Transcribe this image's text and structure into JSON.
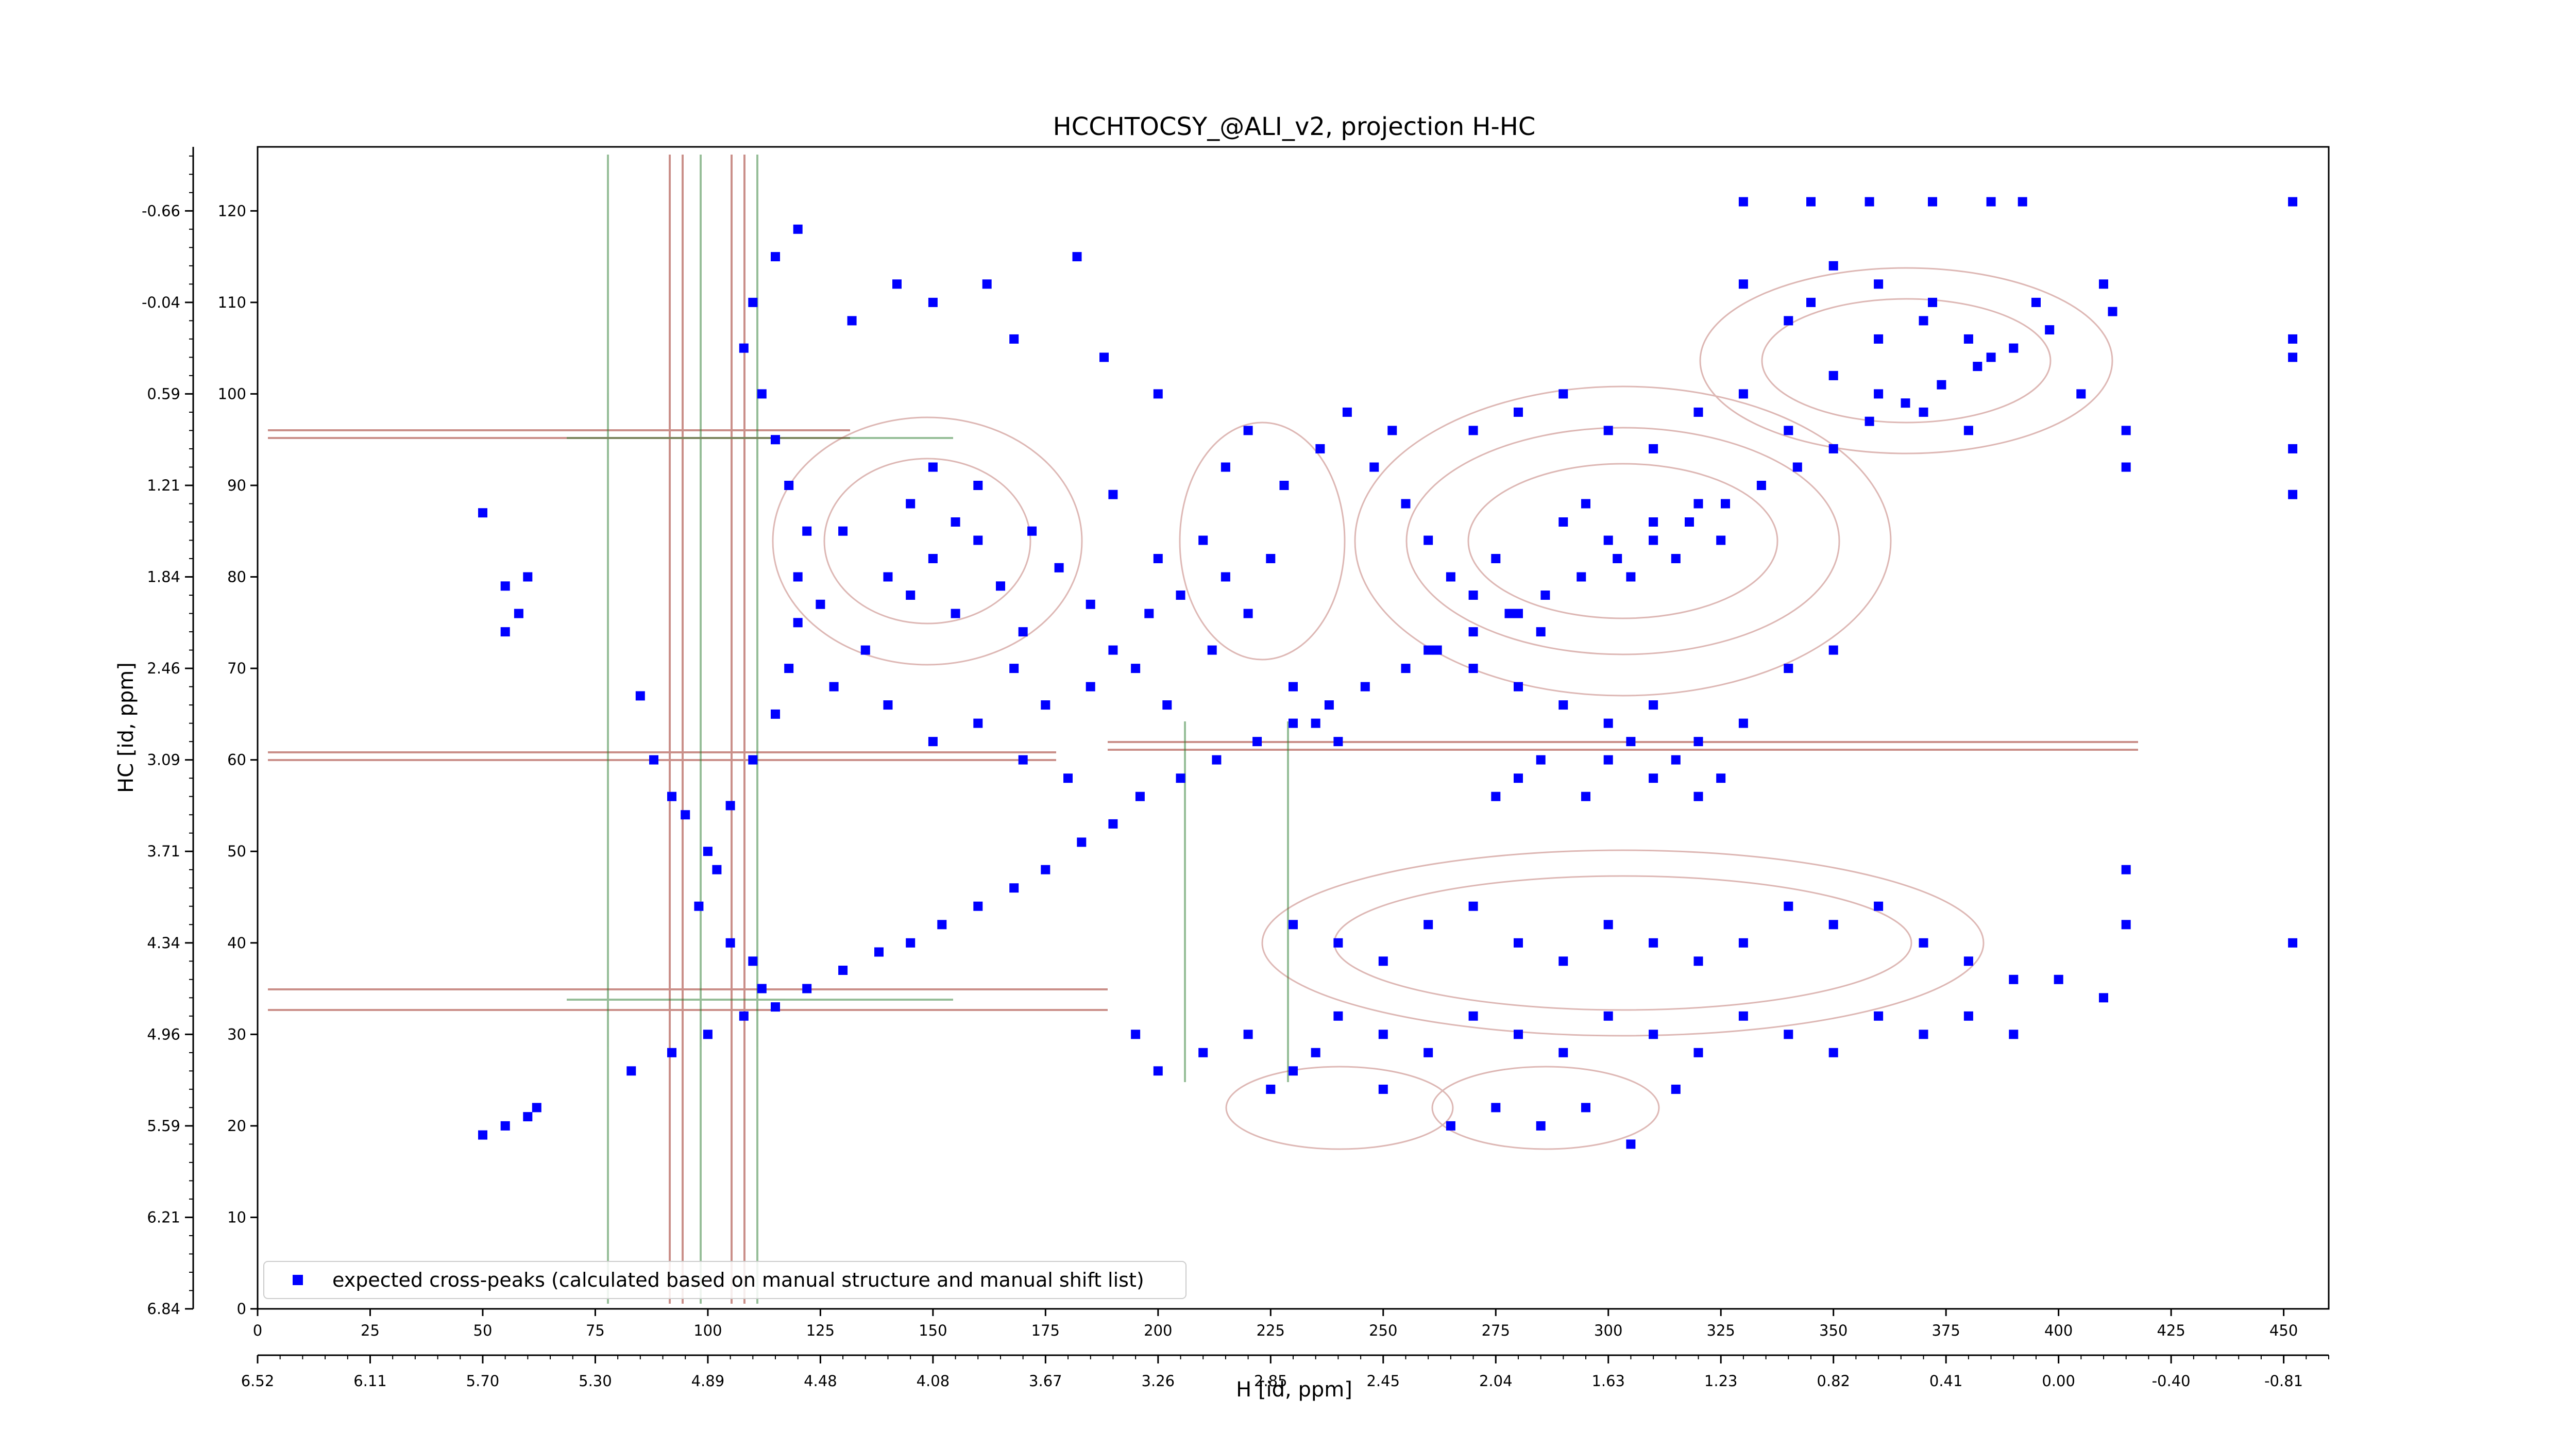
{
  "chart_data": {
    "type": "scatter",
    "title": "HCCHTOCSY_@ALI_v2, projection H-HC",
    "xlabel": "H [id, ppm]",
    "ylabel": "HC [id, ppm]",
    "x_index_ticks": [
      "0",
      "25",
      "50",
      "75",
      "100",
      "125",
      "150",
      "175",
      "200",
      "225",
      "250",
      "275",
      "300",
      "325",
      "350",
      "375",
      "400",
      "425",
      "450"
    ],
    "x_index_range": [
      0,
      460
    ],
    "x_ppm_ticks": [
      "6.52",
      "6.11",
      "5.70",
      "5.30",
      "4.89",
      "4.48",
      "4.08",
      "3.67",
      "3.26",
      "2.85",
      "2.45",
      "2.04",
      "1.63",
      "1.23",
      "0.82",
      "0.41",
      "0.00",
      "-0.40",
      "-0.81"
    ],
    "y_index_ticks": [
      "0",
      "10",
      "20",
      "30",
      "40",
      "50",
      "60",
      "70",
      "80",
      "90",
      "100",
      "110",
      "120"
    ],
    "y_index_range": [
      0,
      127
    ],
    "y_ppm_ticks": [
      "6.84",
      "6.21",
      "5.59",
      "4.96",
      "4.34",
      "3.71",
      "3.09",
      "2.46",
      "1.84",
      "1.21",
      "0.59",
      "-0.04",
      "-0.66"
    ],
    "legend": {
      "label": "expected cross-peaks (calculated based on manual structure and manual shift list)",
      "position": "lower-left"
    },
    "colors": {
      "marker": "#0000ff",
      "contour_positive": "#a0352a",
      "contour_negative": "#2e7d32"
    },
    "series": [
      {
        "label": "expected cross-peaks (calculated based on manual structure and manual shift list)",
        "points": [
          [
            50,
            19
          ],
          [
            55,
            20
          ],
          [
            60,
            21
          ],
          [
            62,
            22
          ],
          [
            83,
            26
          ],
          [
            92,
            28
          ],
          [
            100,
            30
          ],
          [
            108,
            32
          ],
          [
            115,
            33
          ],
          [
            122,
            35
          ],
          [
            130,
            37
          ],
          [
            138,
            39
          ],
          [
            145,
            40
          ],
          [
            152,
            42
          ],
          [
            160,
            44
          ],
          [
            168,
            46
          ],
          [
            175,
            48
          ],
          [
            183,
            51
          ],
          [
            190,
            53
          ],
          [
            196,
            56
          ],
          [
            205,
            58
          ],
          [
            213,
            60
          ],
          [
            222,
            62
          ],
          [
            230,
            64
          ],
          [
            238,
            66
          ],
          [
            246,
            68
          ],
          [
            255,
            70
          ],
          [
            262,
            72
          ],
          [
            270,
            74
          ],
          [
            278,
            76
          ],
          [
            286,
            78
          ],
          [
            294,
            80
          ],
          [
            302,
            82
          ],
          [
            310,
            84
          ],
          [
            318,
            86
          ],
          [
            326,
            88
          ],
          [
            334,
            90
          ],
          [
            342,
            92
          ],
          [
            350,
            94
          ],
          [
            358,
            97
          ],
          [
            366,
            99
          ],
          [
            374,
            101
          ],
          [
            382,
            103
          ],
          [
            390,
            105
          ],
          [
            398,
            107
          ],
          [
            410,
            112
          ],
          [
            412,
            109
          ],
          [
            452,
            106
          ],
          [
            452,
            104
          ],
          [
            452,
            94
          ],
          [
            452,
            89
          ],
          [
            452,
            40
          ],
          [
            50,
            87
          ],
          [
            55,
            79
          ],
          [
            58,
            76
          ],
          [
            60,
            80
          ],
          [
            55,
            74
          ],
          [
            85,
            67
          ],
          [
            88,
            60
          ],
          [
            92,
            56
          ],
          [
            95,
            54
          ],
          [
            100,
            50
          ],
          [
            102,
            48
          ],
          [
            98,
            44
          ],
          [
            105,
            40
          ],
          [
            110,
            38
          ],
          [
            112,
            35
          ],
          [
            140,
            80
          ],
          [
            145,
            78
          ],
          [
            150,
            82
          ],
          [
            155,
            76
          ],
          [
            160,
            84
          ],
          [
            165,
            79
          ],
          [
            170,
            74
          ],
          [
            135,
            72
          ],
          [
            128,
            68
          ],
          [
            140,
            66
          ],
          [
            150,
            62
          ],
          [
            160,
            64
          ],
          [
            170,
            60
          ],
          [
            180,
            58
          ],
          [
            145,
            88
          ],
          [
            150,
            92
          ],
          [
            155,
            86
          ],
          [
            160,
            90
          ],
          [
            130,
            85
          ],
          [
            125,
            77
          ],
          [
            200,
            82
          ],
          [
            205,
            78
          ],
          [
            210,
            84
          ],
          [
            215,
            80
          ],
          [
            220,
            76
          ],
          [
            225,
            82
          ],
          [
            198,
            76
          ],
          [
            212,
            72
          ],
          [
            230,
            68
          ],
          [
            235,
            64
          ],
          [
            240,
            62
          ],
          [
            195,
            70
          ],
          [
            202,
            66
          ],
          [
            260,
            84
          ],
          [
            265,
            80
          ],
          [
            270,
            78
          ],
          [
            275,
            82
          ],
          [
            280,
            76
          ],
          [
            285,
            74
          ],
          [
            290,
            86
          ],
          [
            295,
            88
          ],
          [
            300,
            84
          ],
          [
            305,
            80
          ],
          [
            310,
            86
          ],
          [
            315,
            82
          ],
          [
            320,
            88
          ],
          [
            325,
            84
          ],
          [
            260,
            72
          ],
          [
            270,
            70
          ],
          [
            280,
            68
          ],
          [
            290,
            66
          ],
          [
            300,
            64
          ],
          [
            310,
            66
          ],
          [
            320,
            62
          ],
          [
            330,
            64
          ],
          [
            340,
            70
          ],
          [
            350,
            72
          ],
          [
            270,
            96
          ],
          [
            280,
            98
          ],
          [
            290,
            100
          ],
          [
            300,
            96
          ],
          [
            310,
            94
          ],
          [
            320,
            98
          ],
          [
            330,
            100
          ],
          [
            340,
            96
          ],
          [
            350,
            102
          ],
          [
            360,
            100
          ],
          [
            370,
            98
          ],
          [
            380,
            96
          ],
          [
            345,
            110
          ],
          [
            360,
            106
          ],
          [
            370,
            108
          ],
          [
            385,
            104
          ],
          [
            395,
            110
          ],
          [
            405,
            100
          ],
          [
            415,
            92
          ],
          [
            415,
            96
          ],
          [
            230,
            42
          ],
          [
            240,
            40
          ],
          [
            250,
            38
          ],
          [
            260,
            42
          ],
          [
            270,
            44
          ],
          [
            280,
            40
          ],
          [
            290,
            38
          ],
          [
            300,
            42
          ],
          [
            310,
            40
          ],
          [
            320,
            38
          ],
          [
            330,
            40
          ],
          [
            340,
            44
          ],
          [
            350,
            42
          ],
          [
            360,
            44
          ],
          [
            370,
            40
          ],
          [
            380,
            38
          ],
          [
            390,
            36
          ],
          [
            400,
            36
          ],
          [
            410,
            34
          ],
          [
            415,
            42
          ],
          [
            415,
            48
          ],
          [
            240,
            32
          ],
          [
            250,
            30
          ],
          [
            260,
            28
          ],
          [
            270,
            32
          ],
          [
            280,
            30
          ],
          [
            290,
            28
          ],
          [
            300,
            32
          ],
          [
            310,
            30
          ],
          [
            320,
            28
          ],
          [
            330,
            32
          ],
          [
            340,
            30
          ],
          [
            350,
            28
          ],
          [
            360,
            32
          ],
          [
            370,
            30
          ],
          [
            380,
            32
          ],
          [
            390,
            30
          ],
          [
            220,
            30
          ],
          [
            210,
            28
          ],
          [
            200,
            26
          ],
          [
            195,
            30
          ],
          [
            265,
            20
          ],
          [
            275,
            22
          ],
          [
            285,
            20
          ],
          [
            295,
            22
          ],
          [
            305,
            18
          ],
          [
            315,
            24
          ],
          [
            250,
            24
          ],
          [
            230,
            26
          ],
          [
            225,
            24
          ],
          [
            235,
            28
          ],
          [
            105,
            55
          ],
          [
            110,
            60
          ],
          [
            115,
            65
          ],
          [
            118,
            70
          ],
          [
            120,
            75
          ],
          [
            120,
            80
          ],
          [
            122,
            85
          ],
          [
            118,
            90
          ],
          [
            115,
            95
          ],
          [
            112,
            100
          ],
          [
            108,
            105
          ],
          [
            110,
            110
          ],
          [
            115,
            115
          ],
          [
            120,
            118
          ],
          [
            300,
            60
          ],
          [
            305,
            62
          ],
          [
            310,
            58
          ],
          [
            295,
            56
          ],
          [
            315,
            60
          ],
          [
            285,
            60
          ],
          [
            280,
            58
          ],
          [
            275,
            56
          ],
          [
            320,
            56
          ],
          [
            325,
            58
          ],
          [
            172,
            85
          ],
          [
            178,
            81
          ],
          [
            185,
            77
          ],
          [
            190,
            89
          ],
          [
            168,
            70
          ],
          [
            175,
            66
          ],
          [
            185,
            68
          ],
          [
            190,
            72
          ],
          [
            182,
            115
          ],
          [
            162,
            112
          ],
          [
            142,
            112
          ],
          [
            132,
            108
          ],
          [
            150,
            110
          ],
          [
            168,
            106
          ],
          [
            188,
            104
          ],
          [
            200,
            100
          ],
          [
            215,
            92
          ],
          [
            220,
            96
          ],
          [
            228,
            90
          ],
          [
            236,
            94
          ],
          [
            242,
            98
          ],
          [
            248,
            92
          ],
          [
            255,
            88
          ],
          [
            252,
            96
          ],
          [
            330,
            121
          ],
          [
            345,
            121
          ],
          [
            358,
            121
          ],
          [
            372,
            121
          ],
          [
            385,
            121
          ],
          [
            392,
            121
          ],
          [
            452,
            121
          ],
          [
            330,
            112
          ],
          [
            340,
            108
          ],
          [
            350,
            114
          ],
          [
            360,
            112
          ],
          [
            372,
            110
          ],
          [
            380,
            106
          ]
        ]
      }
    ]
  }
}
